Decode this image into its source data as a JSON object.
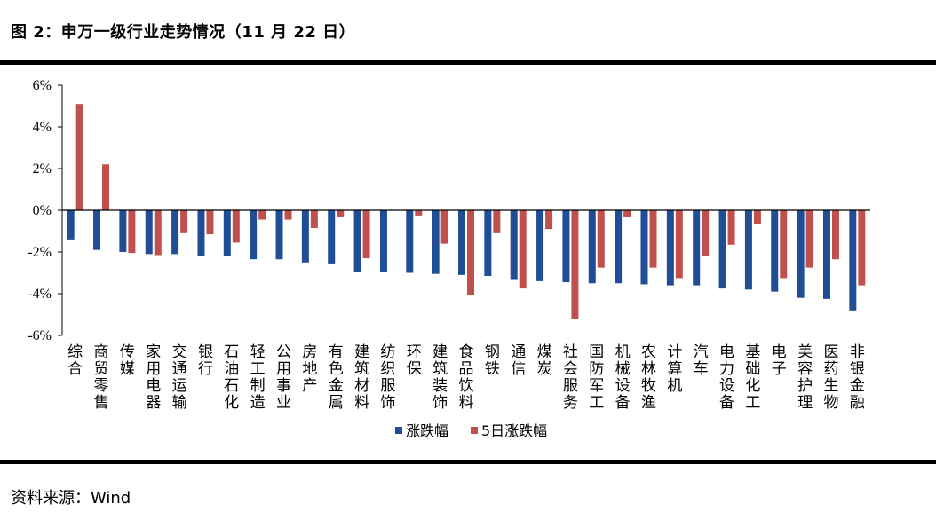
{
  "figure": {
    "title": "图 2：申万一级行业走势情况（11 月 22 日）",
    "source": "资料来源：Wind"
  },
  "colors": {
    "series1": "#1f4e96",
    "series2": "#c0504d",
    "axis": "#000000"
  },
  "chart_data": {
    "type": "bar",
    "title": "",
    "xlabel": "",
    "ylabel": "",
    "ylim": [
      -6,
      6
    ],
    "y_ticks": [
      "6%",
      "4%",
      "2%",
      "0%",
      "-2%",
      "-4%",
      "-6%"
    ],
    "y_tick_values": [
      6,
      4,
      2,
      0,
      -2,
      -4,
      -6
    ],
    "grid": false,
    "legend": "bottom",
    "categories": [
      "综合",
      "商贸零售",
      "传媒",
      "家用电器",
      "交通运输",
      "银行",
      "石油石化",
      "轻工制造",
      "公用事业",
      "房地产",
      "有色金属",
      "建筑材料",
      "纺织服饰",
      "环保",
      "建筑装饰",
      "食品饮料",
      "钢铁",
      "通信",
      "煤炭",
      "社会服务",
      "国防军工",
      "机械设备",
      "农林牧渔",
      "计算机",
      "汽车",
      "电力设备",
      "基础化工",
      "电子",
      "美容护理",
      "医药生物",
      "非银金融"
    ],
    "series": [
      {
        "name": "涨跌幅",
        "values": [
          -1.4,
          -1.9,
          -2.0,
          -2.1,
          -2.1,
          -2.2,
          -2.2,
          -2.35,
          -2.35,
          -2.5,
          -2.55,
          -2.95,
          -2.95,
          -3.0,
          -3.05,
          -3.1,
          -3.15,
          -3.3,
          -3.4,
          -3.45,
          -3.5,
          -3.5,
          -3.55,
          -3.6,
          -3.6,
          -3.75,
          -3.8,
          -3.9,
          -4.2,
          -4.25,
          -4.8
        ]
      },
      {
        "name": "5日涨跌幅",
        "values": [
          5.1,
          2.2,
          -2.05,
          -2.15,
          -1.1,
          -1.15,
          -1.55,
          -0.45,
          -0.45,
          -0.85,
          -0.3,
          -2.3,
          0.0,
          -0.25,
          -1.6,
          -4.05,
          -1.1,
          -3.75,
          -0.9,
          -5.2,
          -2.75,
          -0.3,
          -2.75,
          -3.25,
          -2.2,
          -1.65,
          -0.65,
          -3.25,
          -2.75,
          -2.35,
          -3.6
        ]
      }
    ]
  }
}
